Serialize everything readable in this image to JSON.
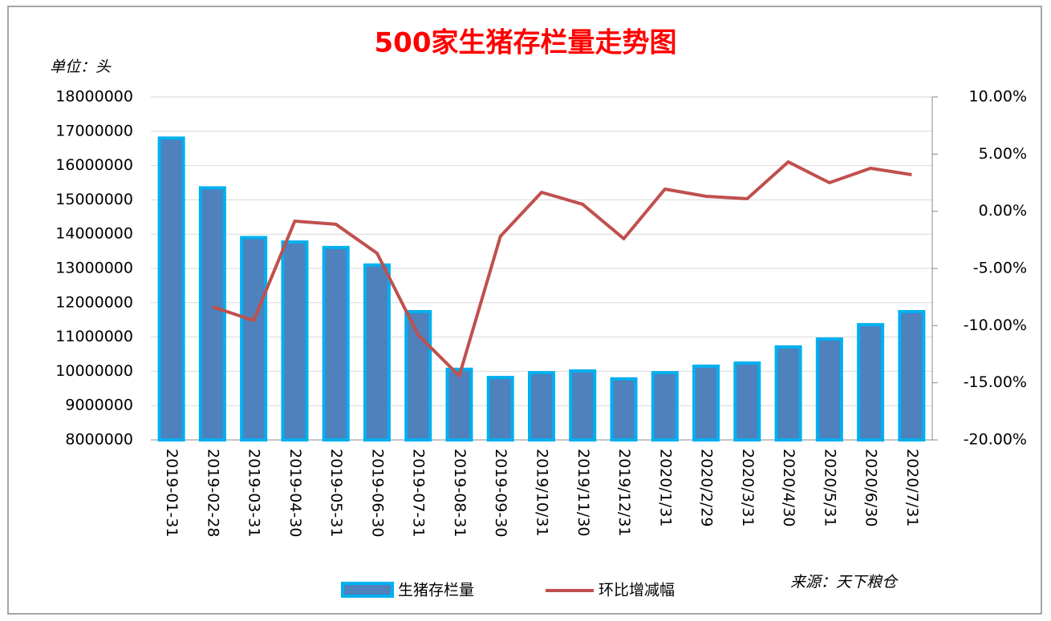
{
  "chart_data": {
    "type": "bar-line",
    "title": "500家生猪存栏量走势图",
    "unit_label": "单位：头",
    "source": "来源：天下粮仓",
    "categories": [
      "2019-01-31",
      "2019-02-28",
      "2019-03-31",
      "2019-04-30",
      "2019-05-31",
      "2019-06-30",
      "2019-07-31",
      "2019-08-31",
      "2019-09-30",
      "2019/10/31",
      "2019/11/30",
      "2019/12/31",
      "2020/1/31",
      "2020/2/29",
      "2020/3/31",
      "2020/4/30",
      "2020/5/31",
      "2020/6/30",
      "2020/7/31"
    ],
    "series": [
      {
        "name": "生猪存栏量",
        "type": "bar",
        "color": "#4f81bd",
        "border_color": "#00b0f0",
        "values": [
          16800000,
          15350000,
          13900000,
          13770000,
          13610000,
          13100000,
          11740000,
          10060000,
          9820000,
          9960000,
          10010000,
          9780000,
          9960000,
          10150000,
          10240000,
          10710000,
          10940000,
          11360000,
          11740000
        ]
      },
      {
        "name": "环比增减幅",
        "type": "line",
        "axis": "y2",
        "color": "#c0504d",
        "values": [
          null,
          -8.36,
          -9.55,
          -0.86,
          -1.14,
          -3.67,
          -10.82,
          -14.4,
          -2.19,
          1.66,
          0.61,
          -2.4,
          1.94,
          1.31,
          1.1,
          4.32,
          2.5,
          3.76,
          3.2
        ]
      }
    ],
    "ylim": [
      8000000,
      18000000
    ],
    "yticks": [
      8000000,
      9000000,
      10000000,
      11000000,
      12000000,
      13000000,
      14000000,
      15000000,
      16000000,
      17000000,
      18000000
    ],
    "y2lim": [
      -20,
      10
    ],
    "y2ticks": [
      {
        "value": -20,
        "label": "-20.00%"
      },
      {
        "value": -15,
        "label": "-15.00%"
      },
      {
        "value": -10,
        "label": "-10.00%"
      },
      {
        "value": -5,
        "label": "-5.00%"
      },
      {
        "value": 0,
        "label": "0.00%"
      },
      {
        "value": 5,
        "label": "5.00%"
      },
      {
        "value": 10,
        "label": "10.00%"
      }
    ],
    "grid": true
  }
}
